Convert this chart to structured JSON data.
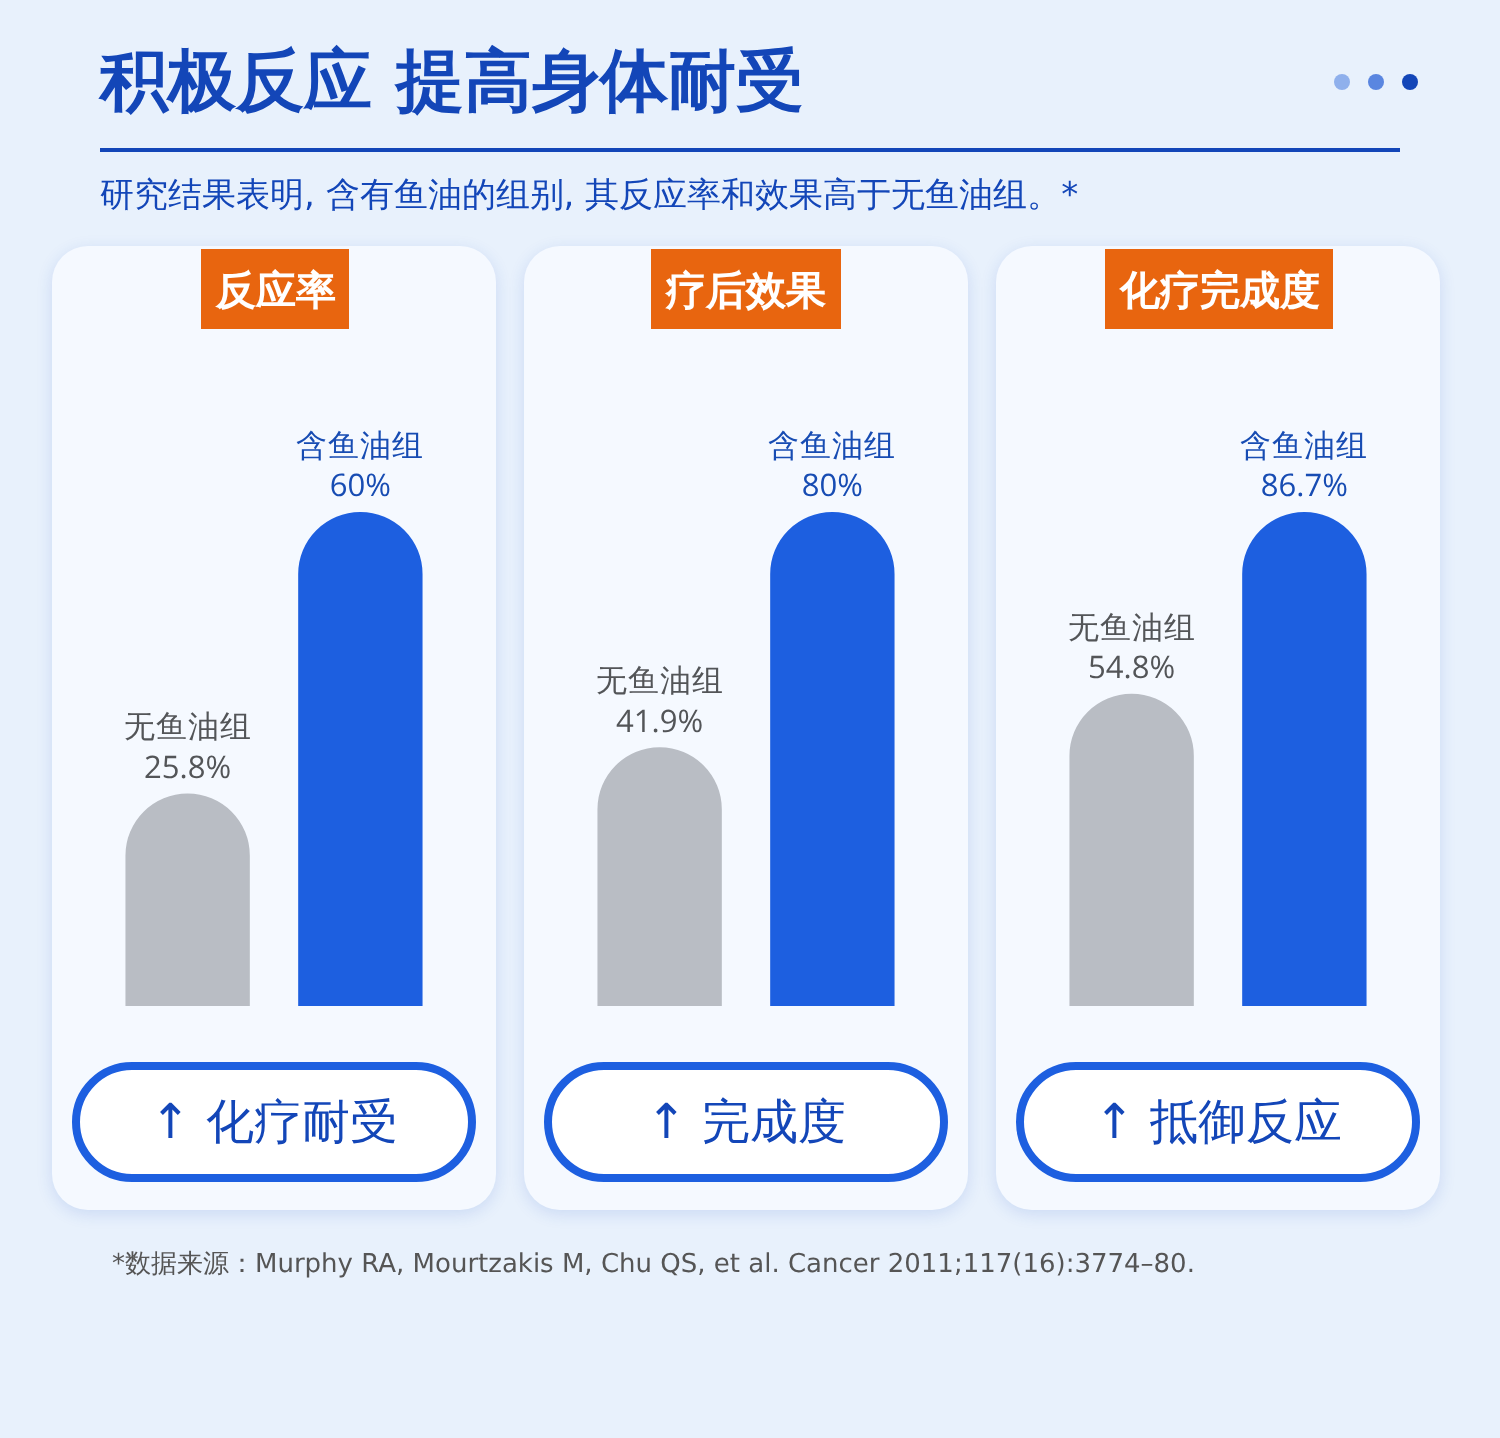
{
  "chart_data": [
    {
      "type": "other",
      "title": "积极反应 提高身体耐受",
      "subtitle": "研究结果表明, 含有鱼油的组别, 其反应率和效果高于无鱼油组。*",
      "annotations": [
        "*数据来源：Murphy RA, Mourtzakis M, Chu QS, et al. Cancer 2011;117(16):3774–80."
      ]
    },
    {
      "type": "bar",
      "title": "反应率",
      "categories": [
        "无鱼油组",
        "含鱼油组"
      ],
      "values": [
        25.8,
        60
      ],
      "value_labels": [
        "25.8%",
        "60%"
      ],
      "colors": [
        "#b9bdc4",
        "#1d5fe0"
      ],
      "tick_labels": false,
      "annotations": [
        "↑ 化疗耐受"
      ]
    },
    {
      "type": "bar",
      "title": "疗后效果",
      "categories": [
        "无鱼油组",
        "含鱼油组"
      ],
      "values": [
        41.9,
        80
      ],
      "value_labels": [
        "41.9%",
        "80%"
      ],
      "colors": [
        "#b9bdc4",
        "#1d5fe0"
      ],
      "tick_labels": false,
      "annotations": [
        "↑ 完成度"
      ]
    },
    {
      "type": "bar",
      "title": "化疗完成度",
      "categories": [
        "无鱼油组",
        "含鱼油组"
      ],
      "values": [
        54.8,
        86.7
      ],
      "value_labels": [
        "54.8%",
        "86.7%"
      ],
      "colors": [
        "#b9bdc4",
        "#1d5fe0"
      ],
      "tick_labels": false,
      "annotations": [
        "↑ 抵御反应"
      ]
    }
  ]
}
